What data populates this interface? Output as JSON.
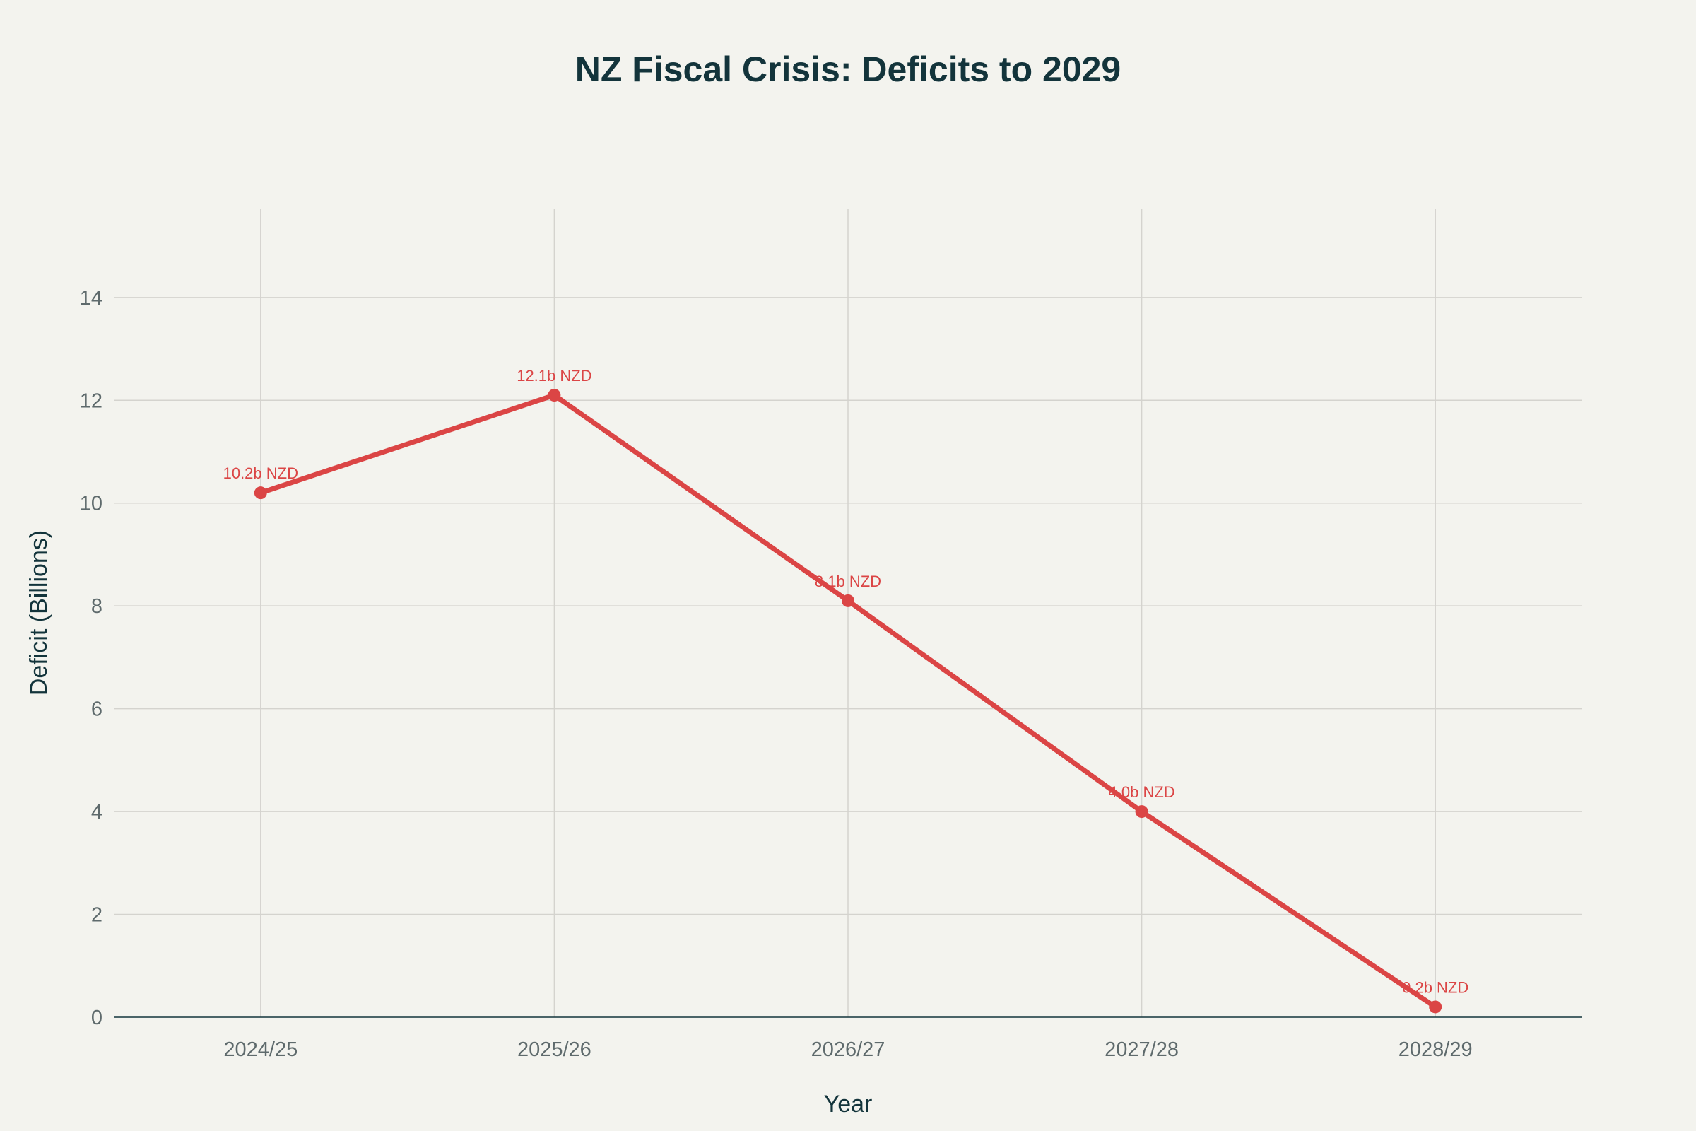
{
  "chart_data": {
    "type": "line",
    "title": "NZ Fiscal Crisis: Deficits to 2029",
    "xlabel": "Year",
    "ylabel": "Deficit (Billions)",
    "categories": [
      "2024/25",
      "2025/26",
      "2026/27",
      "2027/28",
      "2028/29"
    ],
    "series": [
      {
        "name": "Deficit",
        "values": [
          10.2,
          12.1,
          8.1,
          4.0,
          0.2
        ],
        "labels": [
          "10.2b NZD",
          "12.1b NZD",
          "8.1b NZD",
          "4.0b NZD",
          "0.2b NZD"
        ],
        "color": "#DB4545"
      }
    ],
    "yticks": [
      0,
      2,
      4,
      6,
      8,
      10,
      12,
      14
    ],
    "ylim": [
      0,
      15.73
    ],
    "grid": true,
    "legend": "none"
  },
  "colors": {
    "background": "#F3F3EE",
    "grid": "#D4D3CE",
    "text": "#13343B"
  }
}
